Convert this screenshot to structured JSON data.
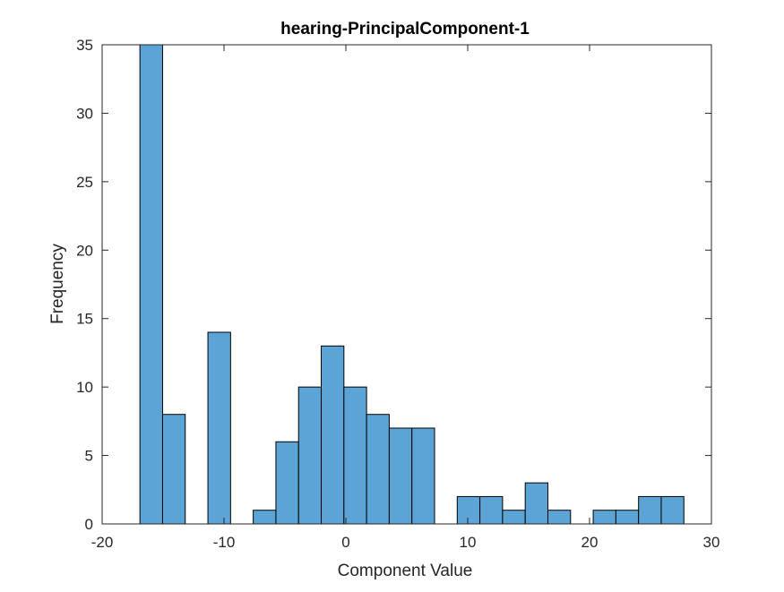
{
  "chart_data": {
    "type": "bar",
    "title": "hearing-PrincipalComponent-1",
    "xlabel": "Component Value",
    "ylabel": "Frequency",
    "xlim": [
      -20,
      30
    ],
    "ylim": [
      0,
      35
    ],
    "xticks": [
      "-20",
      "-10",
      "0",
      "10",
      "20",
      "30"
    ],
    "yticks": [
      "0",
      "5",
      "10",
      "15",
      "20",
      "25",
      "30",
      "35"
    ],
    "bin_start": -16.9,
    "bin_width": 1.86,
    "counts": [
      35,
      8,
      0,
      14,
      0,
      1,
      6,
      10,
      13,
      10,
      8,
      7,
      7,
      0,
      2,
      2,
      1,
      3,
      1,
      0,
      1,
      1,
      2,
      2
    ],
    "bar_color": "#5DA4D6",
    "edge_color": "#000000",
    "grid": false
  }
}
